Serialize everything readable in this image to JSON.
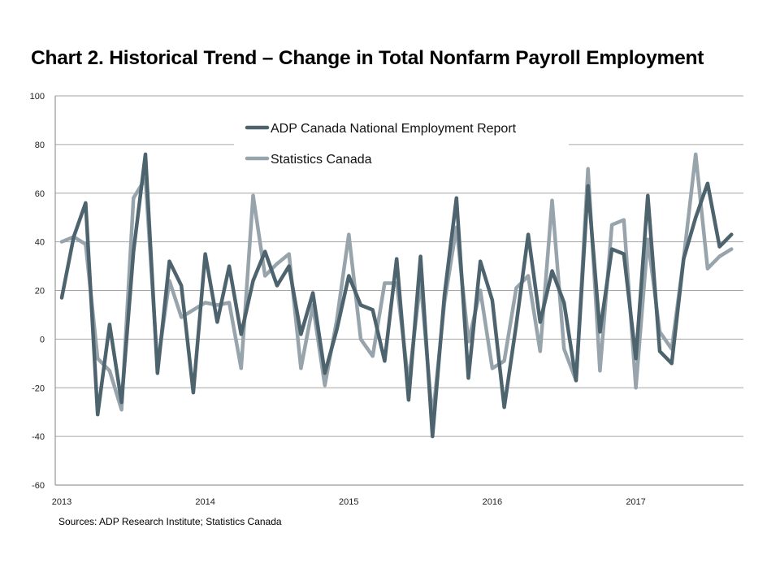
{
  "chart_data": {
    "type": "line",
    "title": "Chart 2. Historical Trend – Change in Total Nonfarm Payroll Employment",
    "source": "Sources: ADP Research Institute; Statistics Canada",
    "xlabel": "",
    "ylabel": "",
    "ylim": [
      -60,
      100
    ],
    "yticks": [
      "-60",
      "-40",
      "-20",
      "0",
      "20",
      "40",
      "60",
      "80",
      "100"
    ],
    "xticks": [
      "2013",
      "2014",
      "2015",
      "2016",
      "2017"
    ],
    "x_start": "2013-01",
    "grid": true,
    "legend_position": "top-center",
    "series": [
      {
        "name": "ADP Canada National Employment Report",
        "color": "#4d636e",
        "values": [
          17,
          42,
          56,
          -31,
          6,
          -26,
          36,
          76,
          -14,
          32,
          22,
          -22,
          35,
          7,
          30,
          2,
          24,
          36,
          22,
          30,
          2,
          19,
          -14,
          4,
          26,
          14,
          12,
          -9,
          33,
          -25,
          34,
          -40,
          18,
          58,
          -16,
          32,
          16,
          -28,
          6,
          43,
          7,
          28,
          15,
          -17,
          63,
          3,
          37,
          35,
          -8,
          59,
          -5,
          -10,
          33,
          50,
          64,
          38,
          43
        ]
      },
      {
        "name": "Statistics Canada",
        "color": "#97a4ac",
        "values": [
          40,
          42,
          39,
          -8,
          -13,
          -29,
          58,
          66,
          -11,
          24,
          9,
          12,
          15,
          14,
          15,
          -12,
          59,
          26,
          31,
          35,
          -12,
          14,
          -19,
          8,
          43,
          0,
          -7,
          23,
          23,
          -18,
          24,
          -33,
          15,
          46,
          -1,
          20,
          -12,
          -9,
          21,
          26,
          -5,
          57,
          -4,
          -17,
          70,
          -13,
          47,
          49,
          -20,
          41,
          3,
          -4,
          33,
          76,
          29,
          34,
          37
        ]
      }
    ]
  }
}
